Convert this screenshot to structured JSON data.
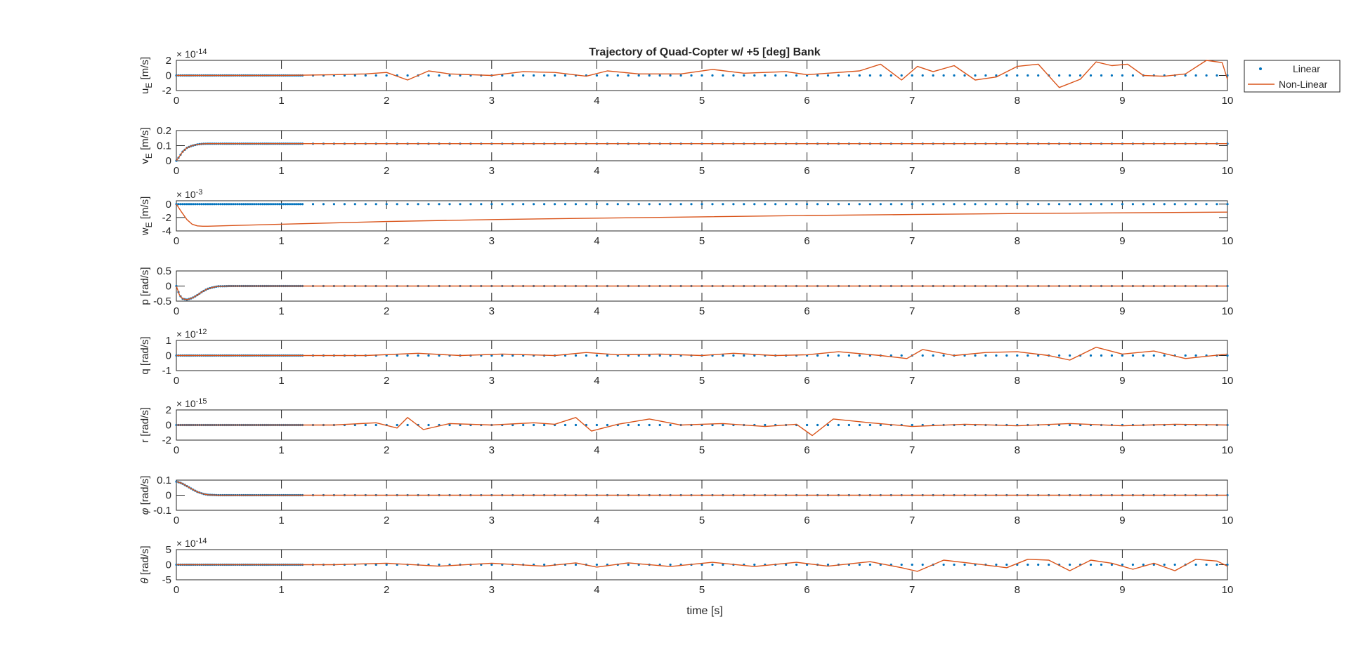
{
  "title": "Trajectory of Quad-Copter w/ +5 [deg] Bank",
  "xlabel": "time [s]",
  "legend": {
    "placement": "top-right",
    "entries": [
      {
        "label": "Linear",
        "marker": "dot",
        "color": "#0072BD"
      },
      {
        "label": "Non-Linear",
        "marker": "line",
        "color": "#D95319"
      }
    ]
  },
  "chart_data": [
    {
      "type": "line",
      "ylabel_main": "u",
      "ylabel_sub": "E",
      "ylabel_unit": " [m/s]",
      "exponent_base": "× 10",
      "exponent_power": "-14",
      "xlim": [
        0,
        10
      ],
      "ylim": [
        -2,
        2
      ],
      "xticks": [
        "0",
        "1",
        "2",
        "3",
        "4",
        "5",
        "6",
        "7",
        "8",
        "9",
        "10"
      ],
      "yticks": [
        {
          "v": 2,
          "label": "2"
        },
        {
          "v": 0,
          "label": "0"
        },
        {
          "v": -2,
          "label": "-2"
        }
      ],
      "series": [
        {
          "name": "Linear",
          "style": "dots",
          "x": [
            0,
            10
          ],
          "y": [
            0,
            0
          ]
        },
        {
          "name": "Non-Linear",
          "style": "line",
          "x": [
            0,
            0.5,
            1,
            1.5,
            1.8,
            2,
            2.2,
            2.4,
            2.6,
            3,
            3.3,
            3.6,
            3.9,
            4.1,
            4.4,
            4.8,
            5.1,
            5.4,
            5.8,
            6,
            6.2,
            6.5,
            6.7,
            6.9,
            7.05,
            7.2,
            7.4,
            7.6,
            7.8,
            8,
            8.2,
            8.4,
            8.6,
            8.75,
            8.9,
            9.05,
            9.2,
            9.4,
            9.6,
            9.8,
            9.95,
            10
          ],
          "y": [
            0,
            0,
            0,
            0.1,
            0.2,
            0.4,
            -0.6,
            0.6,
            0.2,
            0,
            0.5,
            0.4,
            -0.1,
            0.6,
            0.2,
            0.2,
            0.8,
            0.3,
            0.5,
            0.1,
            0.3,
            0.6,
            1.5,
            -0.6,
            1.2,
            0.5,
            1.3,
            -0.6,
            -0.2,
            1.2,
            1.5,
            -1.6,
            -0.5,
            1.8,
            1.3,
            1.5,
            0,
            -0.1,
            0.2,
            2,
            1.7,
            -0.5
          ]
        }
      ]
    },
    {
      "type": "line",
      "ylabel_main": "v",
      "ylabel_sub": "E",
      "ylabel_unit": " [m/s]",
      "exponent_base": "",
      "exponent_power": "",
      "xlim": [
        0,
        10
      ],
      "ylim": [
        0,
        0.2
      ],
      "xticks": [
        "0",
        "1",
        "2",
        "3",
        "4",
        "5",
        "6",
        "7",
        "8",
        "9",
        "10"
      ],
      "yticks": [
        {
          "v": 0.2,
          "label": "0.2"
        },
        {
          "v": 0.1,
          "label": "0.1"
        },
        {
          "v": 0,
          "label": "0"
        }
      ],
      "series": [
        {
          "name": "Linear",
          "style": "dots",
          "x": [
            0,
            0.03,
            0.06,
            0.1,
            0.15,
            0.2,
            0.25,
            0.3,
            0.4,
            0.6,
            10
          ],
          "y": [
            0,
            0.03,
            0.06,
            0.085,
            0.1,
            0.108,
            0.112,
            0.113,
            0.113,
            0.113,
            0.113
          ]
        },
        {
          "name": "Non-Linear",
          "style": "line",
          "x": [
            0,
            0.03,
            0.06,
            0.1,
            0.15,
            0.2,
            0.25,
            0.3,
            0.4,
            0.6,
            10
          ],
          "y": [
            0,
            0.03,
            0.06,
            0.085,
            0.1,
            0.108,
            0.112,
            0.113,
            0.113,
            0.113,
            0.113
          ]
        }
      ]
    },
    {
      "type": "line",
      "ylabel_main": "w",
      "ylabel_sub": "E",
      "ylabel_unit": " [m/s]",
      "exponent_base": "× 10",
      "exponent_power": "-3",
      "xlim": [
        0,
        10
      ],
      "ylim": [
        -4,
        0.5
      ],
      "xticks": [
        "0",
        "1",
        "2",
        "3",
        "4",
        "5",
        "6",
        "7",
        "8",
        "9",
        "10"
      ],
      "yticks": [
        {
          "v": 0,
          "label": "0"
        },
        {
          "v": -2,
          "label": "-2"
        },
        {
          "v": -4,
          "label": "-4"
        }
      ],
      "series": [
        {
          "name": "Linear",
          "style": "dots",
          "x": [
            0,
            10
          ],
          "y": [
            0,
            0
          ]
        },
        {
          "name": "Non-Linear",
          "style": "line",
          "x": [
            0,
            0.05,
            0.1,
            0.15,
            0.2,
            0.25,
            0.3,
            0.5,
            1,
            2,
            3,
            4,
            5,
            6,
            7,
            8,
            9,
            10
          ],
          "y": [
            0,
            -1.2,
            -2.3,
            -3,
            -3.25,
            -3.3,
            -3.3,
            -3.2,
            -3.0,
            -2.6,
            -2.3,
            -2.1,
            -1.9,
            -1.7,
            -1.55,
            -1.4,
            -1.3,
            -1.2
          ]
        }
      ]
    },
    {
      "type": "line",
      "ylabel_main": "p",
      "ylabel_sub": "",
      "ylabel_unit": " [rad/s]",
      "exponent_base": "",
      "exponent_power": "",
      "xlim": [
        0,
        10
      ],
      "ylim": [
        -0.5,
        0.5
      ],
      "xticks": [
        "0",
        "1",
        "2",
        "3",
        "4",
        "5",
        "6",
        "7",
        "8",
        "9",
        "10"
      ],
      "yticks": [
        {
          "v": 0.5,
          "label": "0.5"
        },
        {
          "v": 0,
          "label": "0"
        },
        {
          "v": -0.5,
          "label": "-0.5"
        }
      ],
      "series": [
        {
          "name": "Linear",
          "style": "dots",
          "x": [
            0,
            0.03,
            0.06,
            0.1,
            0.15,
            0.2,
            0.25,
            0.3,
            0.35,
            0.4,
            0.5,
            10
          ],
          "y": [
            0,
            -0.3,
            -0.42,
            -0.45,
            -0.4,
            -0.3,
            -0.18,
            -0.09,
            -0.04,
            -0.01,
            0,
            0
          ]
        },
        {
          "name": "Non-Linear",
          "style": "line",
          "x": [
            0,
            0.03,
            0.06,
            0.1,
            0.15,
            0.2,
            0.25,
            0.3,
            0.35,
            0.4,
            0.5,
            10
          ],
          "y": [
            0,
            -0.3,
            -0.42,
            -0.45,
            -0.4,
            -0.3,
            -0.18,
            -0.09,
            -0.04,
            -0.01,
            0,
            0
          ]
        }
      ]
    },
    {
      "type": "line",
      "ylabel_main": "q",
      "ylabel_sub": "",
      "ylabel_unit": " [rad/s]",
      "exponent_base": "× 10",
      "exponent_power": "-12",
      "xlim": [
        0,
        10
      ],
      "ylim": [
        -1,
        1
      ],
      "xticks": [
        "0",
        "1",
        "2",
        "3",
        "4",
        "5",
        "6",
        "7",
        "8",
        "9",
        "10"
      ],
      "yticks": [
        {
          "v": 1,
          "label": "1"
        },
        {
          "v": 0,
          "label": "0"
        },
        {
          "v": -1,
          "label": "-1"
        }
      ],
      "series": [
        {
          "name": "Linear",
          "style": "dots",
          "x": [
            0,
            10
          ],
          "y": [
            0,
            0
          ]
        },
        {
          "name": "Non-Linear",
          "style": "line",
          "x": [
            0,
            1,
            1.8,
            2.3,
            2.7,
            3.1,
            3.6,
            3.9,
            4.2,
            4.6,
            5,
            5.3,
            5.7,
            6,
            6.3,
            6.7,
            6.95,
            7.1,
            7.4,
            7.7,
            8,
            8.3,
            8.5,
            8.75,
            9,
            9.3,
            9.6,
            10
          ],
          "y": [
            0,
            0,
            0,
            0.15,
            0,
            0.1,
            0,
            0.2,
            0.05,
            0.1,
            0,
            0.15,
            0,
            0.05,
            0.25,
            0,
            -0.2,
            0.4,
            0,
            0.2,
            0.25,
            0,
            -0.3,
            0.55,
            0.1,
            0.3,
            -0.2,
            0.1
          ]
        }
      ]
    },
    {
      "type": "line",
      "ylabel_main": "r",
      "ylabel_sub": "",
      "ylabel_unit": " [rad/s]",
      "exponent_base": "× 10",
      "exponent_power": "-15",
      "xlim": [
        0,
        10
      ],
      "ylim": [
        -2,
        2
      ],
      "xticks": [
        "0",
        "1",
        "2",
        "3",
        "4",
        "5",
        "6",
        "7",
        "8",
        "9",
        "10"
      ],
      "yticks": [
        {
          "v": 2,
          "label": "2"
        },
        {
          "v": 0,
          "label": "0"
        },
        {
          "v": -2,
          "label": "-2"
        }
      ],
      "series": [
        {
          "name": "Linear",
          "style": "dots",
          "x": [
            0,
            10
          ],
          "y": [
            0,
            0
          ]
        },
        {
          "name": "Non-Linear",
          "style": "line",
          "x": [
            0,
            1.5,
            1.9,
            2.1,
            2.2,
            2.35,
            2.6,
            3,
            3.4,
            3.6,
            3.8,
            3.95,
            4.2,
            4.5,
            4.8,
            5.2,
            5.6,
            5.9,
            6.05,
            6.25,
            6.6,
            7,
            7.5,
            8,
            8.5,
            9,
            9.5,
            10
          ],
          "y": [
            0,
            0,
            0.3,
            -0.4,
            1,
            -0.6,
            0.2,
            0,
            0.3,
            0.1,
            1,
            -0.8,
            0.1,
            0.8,
            0,
            0.2,
            -0.2,
            0.1,
            -1.4,
            0.8,
            0.3,
            -0.2,
            0.1,
            -0.1,
            0.2,
            -0.1,
            0.1,
            0
          ]
        }
      ]
    },
    {
      "type": "line",
      "ylabel_main": "φ",
      "ylabel_sub": "",
      "ylabel_unit": " [rad/s]",
      "exponent_base": "",
      "exponent_power": "",
      "xlim": [
        0,
        10
      ],
      "ylim": [
        -0.1,
        0.1
      ],
      "xticks": [
        "0",
        "1",
        "2",
        "3",
        "4",
        "5",
        "6",
        "7",
        "8",
        "9",
        "10"
      ],
      "yticks": [
        {
          "v": 0.1,
          "label": "0.1"
        },
        {
          "v": 0,
          "label": "0"
        },
        {
          "v": -0.1,
          "label": "-0.1"
        }
      ],
      "series": [
        {
          "name": "Linear",
          "style": "dots",
          "x": [
            0,
            0.05,
            0.1,
            0.15,
            0.2,
            0.25,
            0.3,
            0.4,
            0.5,
            10
          ],
          "y": [
            0.09,
            0.08,
            0.06,
            0.04,
            0.022,
            0.01,
            0.003,
            0,
            0,
            0
          ]
        },
        {
          "name": "Non-Linear",
          "style": "line",
          "x": [
            0,
            0.05,
            0.1,
            0.15,
            0.2,
            0.25,
            0.3,
            0.4,
            0.5,
            10
          ],
          "y": [
            0.09,
            0.08,
            0.06,
            0.04,
            0.022,
            0.01,
            0.003,
            0,
            0,
            0
          ]
        }
      ]
    },
    {
      "type": "line",
      "ylabel_main": "θ",
      "ylabel_sub": "",
      "ylabel_unit": " [rad/s]",
      "exponent_base": "× 10",
      "exponent_power": "-14",
      "xlim": [
        0,
        10
      ],
      "ylim": [
        -5,
        5
      ],
      "xticks": [
        "0",
        "1",
        "2",
        "3",
        "4",
        "5",
        "6",
        "7",
        "8",
        "9",
        "10"
      ],
      "yticks": [
        {
          "v": 5,
          "label": "5"
        },
        {
          "v": 0,
          "label": "0"
        },
        {
          "v": -5,
          "label": "-5"
        }
      ],
      "series": [
        {
          "name": "Linear",
          "style": "dots",
          "x": [
            0,
            10
          ],
          "y": [
            0,
            0
          ]
        },
        {
          "name": "Non-Linear",
          "style": "line",
          "x": [
            0,
            1.5,
            2,
            2.5,
            3,
            3.5,
            3.8,
            4,
            4.3,
            4.7,
            5.1,
            5.5,
            5.9,
            6.2,
            6.6,
            6.9,
            7.05,
            7.3,
            7.6,
            7.9,
            8.1,
            8.3,
            8.5,
            8.7,
            8.9,
            9.1,
            9.3,
            9.5,
            9.7,
            9.9,
            10
          ],
          "y": [
            0,
            0,
            0.5,
            -0.5,
            0.5,
            -0.5,
            0.6,
            -0.8,
            0.6,
            -0.6,
            0.8,
            -0.6,
            0.8,
            -0.5,
            1,
            -1,
            -2.2,
            1.5,
            0.3,
            -1,
            1.8,
            1.5,
            -2,
            1.5,
            0.5,
            -1.5,
            0.5,
            -2,
            1.8,
            1.2,
            -0.5
          ]
        }
      ]
    }
  ]
}
